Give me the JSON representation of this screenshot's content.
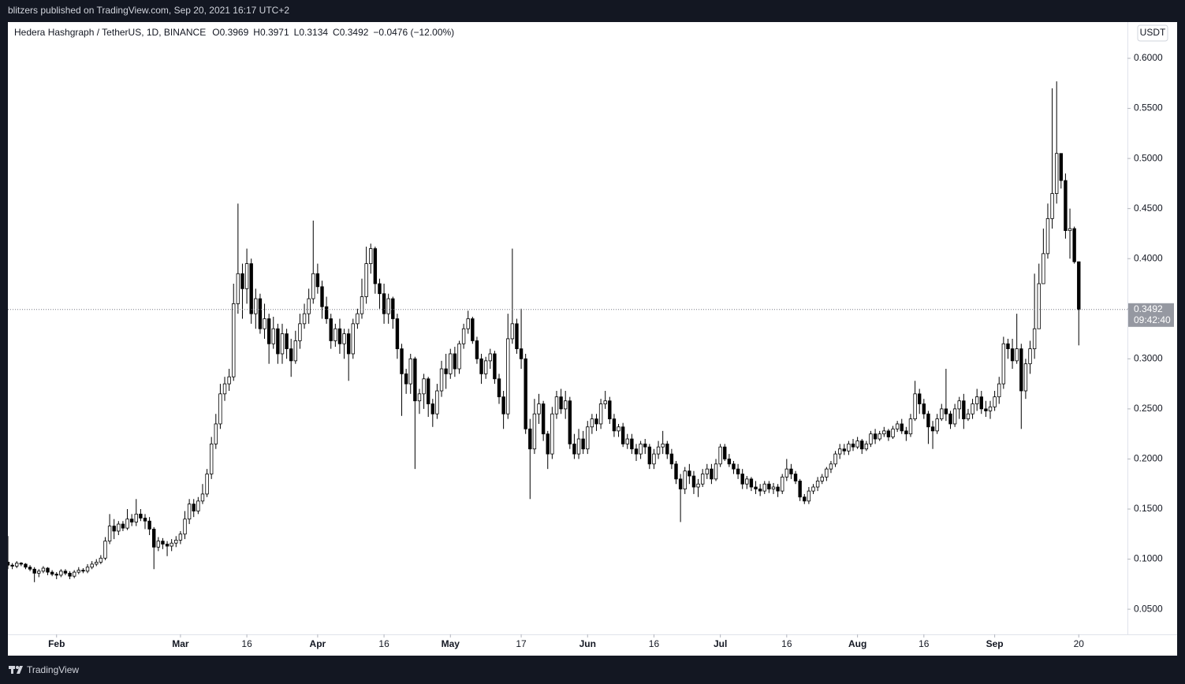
{
  "header": {
    "published": "blitzers published on TradingView.com, Sep 20, 2021 16:17 UTC+2"
  },
  "footer": {
    "brand": "TradingView"
  },
  "chart_data": {
    "type": "candlestick",
    "title": "Hedera Hashgraph / TetherUS, 1D, BINANCE",
    "legend_labels": [
      "O",
      "H",
      "L",
      "C"
    ],
    "change": "−0.0476 (−12.00%)",
    "currency": "USDT",
    "countdown": "09:42:40",
    "up_color": "#ffffff",
    "down_color": "#000000",
    "x": [
      "2021-01-21",
      "2021-01-22",
      "2021-01-23",
      "2021-01-24",
      "2021-01-25",
      "2021-01-26",
      "2021-01-27",
      "2021-01-28",
      "2021-01-29",
      "2021-01-30",
      "2021-01-31",
      "2021-02-01",
      "2021-02-02",
      "2021-02-03",
      "2021-02-04",
      "2021-02-05",
      "2021-02-06",
      "2021-02-07",
      "2021-02-08",
      "2021-02-09",
      "2021-02-10",
      "2021-02-11",
      "2021-02-12",
      "2021-02-13",
      "2021-02-14",
      "2021-02-15",
      "2021-02-16",
      "2021-02-17",
      "2021-02-18",
      "2021-02-19",
      "2021-02-20",
      "2021-02-21",
      "2021-02-22",
      "2021-02-23",
      "2021-02-24",
      "2021-02-25",
      "2021-02-26",
      "2021-02-27",
      "2021-02-28",
      "2021-03-01",
      "2021-03-02",
      "2021-03-03",
      "2021-03-04",
      "2021-03-05",
      "2021-03-06",
      "2021-03-07",
      "2021-03-08",
      "2021-03-09",
      "2021-03-10",
      "2021-03-11",
      "2021-03-12",
      "2021-03-13",
      "2021-03-14",
      "2021-03-15",
      "2021-03-16",
      "2021-03-17",
      "2021-03-18",
      "2021-03-19",
      "2021-03-20",
      "2021-03-21",
      "2021-03-22",
      "2021-03-23",
      "2021-03-24",
      "2021-03-25",
      "2021-03-26",
      "2021-03-27",
      "2021-03-28",
      "2021-03-29",
      "2021-03-30",
      "2021-03-31",
      "2021-04-01",
      "2021-04-02",
      "2021-04-03",
      "2021-04-04",
      "2021-04-05",
      "2021-04-06",
      "2021-04-07",
      "2021-04-08",
      "2021-04-09",
      "2021-04-10",
      "2021-04-11",
      "2021-04-12",
      "2021-04-13",
      "2021-04-14",
      "2021-04-15",
      "2021-04-16",
      "2021-04-17",
      "2021-04-18",
      "2021-04-19",
      "2021-04-20",
      "2021-04-21",
      "2021-04-22",
      "2021-04-23",
      "2021-04-24",
      "2021-04-25",
      "2021-04-26",
      "2021-04-27",
      "2021-04-28",
      "2021-04-29",
      "2021-04-30",
      "2021-05-01",
      "2021-05-02",
      "2021-05-03",
      "2021-05-04",
      "2021-05-05",
      "2021-05-06",
      "2021-05-07",
      "2021-05-08",
      "2021-05-09",
      "2021-05-10",
      "2021-05-11",
      "2021-05-12",
      "2021-05-13",
      "2021-05-14",
      "2021-05-15",
      "2021-05-16",
      "2021-05-17",
      "2021-05-18",
      "2021-05-19",
      "2021-05-20",
      "2021-05-21",
      "2021-05-22",
      "2021-05-23",
      "2021-05-24",
      "2021-05-25",
      "2021-05-26",
      "2021-05-27",
      "2021-05-28",
      "2021-05-29",
      "2021-05-30",
      "2021-05-31",
      "2021-06-01",
      "2021-06-02",
      "2021-06-03",
      "2021-06-04",
      "2021-06-05",
      "2021-06-06",
      "2021-06-07",
      "2021-06-08",
      "2021-06-09",
      "2021-06-10",
      "2021-06-11",
      "2021-06-12",
      "2021-06-13",
      "2021-06-14",
      "2021-06-15",
      "2021-06-16",
      "2021-06-17",
      "2021-06-18",
      "2021-06-19",
      "2021-06-20",
      "2021-06-21",
      "2021-06-22",
      "2021-06-23",
      "2021-06-24",
      "2021-06-25",
      "2021-06-26",
      "2021-06-27",
      "2021-06-28",
      "2021-06-29",
      "2021-06-30",
      "2021-07-01",
      "2021-07-02",
      "2021-07-03",
      "2021-07-04",
      "2021-07-05",
      "2021-07-06",
      "2021-07-07",
      "2021-07-08",
      "2021-07-09",
      "2021-07-10",
      "2021-07-11",
      "2021-07-12",
      "2021-07-13",
      "2021-07-14",
      "2021-07-15",
      "2021-07-16",
      "2021-07-17",
      "2021-07-18",
      "2021-07-19",
      "2021-07-20",
      "2021-07-21",
      "2021-07-22",
      "2021-07-23",
      "2021-07-24",
      "2021-07-25",
      "2021-07-26",
      "2021-07-27",
      "2021-07-28",
      "2021-07-29",
      "2021-07-30",
      "2021-07-31",
      "2021-08-01",
      "2021-08-02",
      "2021-08-03",
      "2021-08-04",
      "2021-08-05",
      "2021-08-06",
      "2021-08-07",
      "2021-08-08",
      "2021-08-09",
      "2021-08-10",
      "2021-08-11",
      "2021-08-12",
      "2021-08-13",
      "2021-08-14",
      "2021-08-15",
      "2021-08-16",
      "2021-08-17",
      "2021-08-18",
      "2021-08-19",
      "2021-08-20",
      "2021-08-21",
      "2021-08-22",
      "2021-08-23",
      "2021-08-24",
      "2021-08-25",
      "2021-08-26",
      "2021-08-27",
      "2021-08-28",
      "2021-08-29",
      "2021-08-30",
      "2021-08-31",
      "2021-09-01",
      "2021-09-02",
      "2021-09-03",
      "2021-09-04",
      "2021-09-05",
      "2021-09-06",
      "2021-09-07",
      "2021-09-08",
      "2021-09-09",
      "2021-09-10",
      "2021-09-11",
      "2021-09-12",
      "2021-09-13",
      "2021-09-14",
      "2021-09-15",
      "2021-09-16",
      "2021-09-17",
      "2021-09-18",
      "2021-09-19",
      "2021-09-20"
    ],
    "open": [
      0.097,
      0.094,
      0.093,
      0.096,
      0.095,
      0.092,
      0.09,
      0.086,
      0.088,
      0.091,
      0.087,
      0.085,
      0.084,
      0.088,
      0.086,
      0.083,
      0.087,
      0.089,
      0.088,
      0.092,
      0.095,
      0.097,
      0.101,
      0.118,
      0.133,
      0.128,
      0.135,
      0.131,
      0.14,
      0.137,
      0.145,
      0.141,
      0.138,
      0.13,
      0.112,
      0.118,
      0.115,
      0.113,
      0.116,
      0.119,
      0.125,
      0.14,
      0.155,
      0.148,
      0.158,
      0.165,
      0.185,
      0.215,
      0.235,
      0.265,
      0.275,
      0.282,
      0.355,
      0.385,
      0.37,
      0.395,
      0.345,
      0.36,
      0.33,
      0.34,
      0.315,
      0.33,
      0.305,
      0.325,
      0.31,
      0.298,
      0.318,
      0.335,
      0.345,
      0.36,
      0.385,
      0.372,
      0.352,
      0.34,
      0.318,
      0.33,
      0.315,
      0.325,
      0.305,
      0.335,
      0.345,
      0.362,
      0.395,
      0.41,
      0.375,
      0.365,
      0.345,
      0.36,
      0.34,
      0.31,
      0.285,
      0.275,
      0.3,
      0.258,
      0.265,
      0.28,
      0.255,
      0.245,
      0.268,
      0.29,
      0.285,
      0.305,
      0.29,
      0.315,
      0.33,
      0.34,
      0.318,
      0.3,
      0.285,
      0.298,
      0.305,
      0.28,
      0.262,
      0.245,
      0.32,
      0.335,
      0.31,
      0.3,
      0.23,
      0.21,
      0.245,
      0.255,
      0.225,
      0.205,
      0.245,
      0.262,
      0.25,
      0.258,
      0.215,
      0.205,
      0.22,
      0.21,
      0.232,
      0.24,
      0.235,
      0.255,
      0.258,
      0.24,
      0.228,
      0.232,
      0.215,
      0.22,
      0.21,
      0.205,
      0.215,
      0.212,
      0.195,
      0.205,
      0.212,
      0.215,
      0.205,
      0.195,
      0.18,
      0.17,
      0.188,
      0.183,
      0.172,
      0.175,
      0.185,
      0.19,
      0.18,
      0.195,
      0.212,
      0.2,
      0.195,
      0.19,
      0.185,
      0.175,
      0.18,
      0.172,
      0.17,
      0.168,
      0.175,
      0.17,
      0.172,
      0.168,
      0.182,
      0.19,
      0.185,
      0.178,
      0.162,
      0.158,
      0.168,
      0.172,
      0.178,
      0.182,
      0.19,
      0.195,
      0.205,
      0.21,
      0.208,
      0.215,
      0.212,
      0.218,
      0.21,
      0.215,
      0.225,
      0.22,
      0.225,
      0.228,
      0.222,
      0.23,
      0.235,
      0.228,
      0.225,
      0.24,
      0.265,
      0.255,
      0.245,
      0.232,
      0.228,
      0.24,
      0.25,
      0.245,
      0.235,
      0.25,
      0.258,
      0.24,
      0.245,
      0.255,
      0.262,
      0.25,
      0.248,
      0.252,
      0.262,
      0.275,
      0.315,
      0.31,
      0.298,
      0.31,
      0.268,
      0.295,
      0.31,
      0.33,
      0.375,
      0.405,
      0.44,
      0.465,
      0.505,
      0.478,
      0.428,
      0.43,
      0.3969
    ],
    "high": [
      0.123,
      0.096,
      0.098,
      0.097,
      0.096,
      0.094,
      0.092,
      0.09,
      0.093,
      0.092,
      0.089,
      0.087,
      0.09,
      0.09,
      0.088,
      0.089,
      0.092,
      0.091,
      0.095,
      0.098,
      0.1,
      0.104,
      0.122,
      0.145,
      0.14,
      0.138,
      0.138,
      0.15,
      0.145,
      0.16,
      0.15,
      0.145,
      0.142,
      0.132,
      0.122,
      0.121,
      0.118,
      0.12,
      0.123,
      0.128,
      0.148,
      0.16,
      0.16,
      0.162,
      0.175,
      0.19,
      0.222,
      0.245,
      0.275,
      0.282,
      0.29,
      0.375,
      0.455,
      0.395,
      0.41,
      0.4,
      0.37,
      0.365,
      0.355,
      0.345,
      0.342,
      0.335,
      0.335,
      0.33,
      0.32,
      0.328,
      0.345,
      0.355,
      0.37,
      0.438,
      0.395,
      0.378,
      0.362,
      0.345,
      0.335,
      0.34,
      0.33,
      0.33,
      0.34,
      0.35,
      0.38,
      0.412,
      0.415,
      0.412,
      0.38,
      0.375,
      0.365,
      0.362,
      0.345,
      0.315,
      0.29,
      0.305,
      0.302,
      0.27,
      0.285,
      0.282,
      0.26,
      0.275,
      0.298,
      0.305,
      0.31,
      0.312,
      0.318,
      0.335,
      0.348,
      0.342,
      0.322,
      0.305,
      0.302,
      0.31,
      0.308,
      0.285,
      0.268,
      0.345,
      0.41,
      0.34,
      0.35,
      0.305,
      0.24,
      0.26,
      0.265,
      0.258,
      0.228,
      0.252,
      0.268,
      0.27,
      0.268,
      0.262,
      0.225,
      0.23,
      0.228,
      0.238,
      0.245,
      0.245,
      0.26,
      0.268,
      0.262,
      0.245,
      0.235,
      0.236,
      0.225,
      0.225,
      0.215,
      0.218,
      0.22,
      0.215,
      0.21,
      0.218,
      0.228,
      0.218,
      0.21,
      0.198,
      0.185,
      0.192,
      0.195,
      0.188,
      0.18,
      0.19,
      0.195,
      0.195,
      0.2,
      0.215,
      0.215,
      0.205,
      0.198,
      0.195,
      0.19,
      0.183,
      0.182,
      0.178,
      0.175,
      0.178,
      0.178,
      0.176,
      0.175,
      0.185,
      0.2,
      0.195,
      0.188,
      0.18,
      0.165,
      0.172,
      0.175,
      0.182,
      0.185,
      0.192,
      0.198,
      0.208,
      0.215,
      0.215,
      0.218,
      0.22,
      0.222,
      0.22,
      0.218,
      0.228,
      0.23,
      0.228,
      0.232,
      0.23,
      0.233,
      0.238,
      0.24,
      0.232,
      0.245,
      0.278,
      0.27,
      0.26,
      0.248,
      0.238,
      0.245,
      0.255,
      0.29,
      0.248,
      0.255,
      0.262,
      0.265,
      0.25,
      0.26,
      0.27,
      0.268,
      0.258,
      0.258,
      0.268,
      0.282,
      0.322,
      0.32,
      0.32,
      0.345,
      0.315,
      0.3,
      0.318,
      0.385,
      0.395,
      0.43,
      0.455,
      0.57,
      0.577,
      0.505,
      0.485,
      0.45,
      0.432,
      0.3971
    ],
    "low": [
      0.09,
      0.09,
      0.091,
      0.093,
      0.09,
      0.088,
      0.077,
      0.082,
      0.086,
      0.084,
      0.083,
      0.08,
      0.082,
      0.084,
      0.08,
      0.081,
      0.085,
      0.086,
      0.086,
      0.09,
      0.093,
      0.095,
      0.099,
      0.115,
      0.12,
      0.124,
      0.128,
      0.129,
      0.133,
      0.133,
      0.138,
      0.13,
      0.124,
      0.09,
      0.108,
      0.11,
      0.103,
      0.108,
      0.112,
      0.115,
      0.12,
      0.135,
      0.142,
      0.145,
      0.155,
      0.162,
      0.18,
      0.21,
      0.23,
      0.258,
      0.268,
      0.278,
      0.345,
      0.34,
      0.355,
      0.335,
      0.33,
      0.325,
      0.32,
      0.295,
      0.31,
      0.295,
      0.295,
      0.3,
      0.282,
      0.295,
      0.31,
      0.33,
      0.335,
      0.355,
      0.365,
      0.34,
      0.335,
      0.31,
      0.312,
      0.305,
      0.3,
      0.278,
      0.3,
      0.33,
      0.34,
      0.355,
      0.385,
      0.365,
      0.35,
      0.335,
      0.335,
      0.33,
      0.3,
      0.243,
      0.265,
      0.265,
      0.19,
      0.245,
      0.25,
      0.242,
      0.232,
      0.24,
      0.262,
      0.27,
      0.28,
      0.282,
      0.285,
      0.31,
      0.325,
      0.315,
      0.295,
      0.275,
      0.28,
      0.29,
      0.275,
      0.255,
      0.23,
      0.24,
      0.315,
      0.305,
      0.29,
      0.225,
      0.16,
      0.205,
      0.235,
      0.218,
      0.19,
      0.2,
      0.24,
      0.245,
      0.24,
      0.21,
      0.2,
      0.2,
      0.205,
      0.205,
      0.225,
      0.228,
      0.23,
      0.25,
      0.235,
      0.222,
      0.222,
      0.212,
      0.21,
      0.205,
      0.198,
      0.2,
      0.205,
      0.19,
      0.19,
      0.2,
      0.205,
      0.2,
      0.19,
      0.175,
      0.137,
      0.165,
      0.175,
      0.165,
      0.162,
      0.172,
      0.18,
      0.175,
      0.178,
      0.192,
      0.198,
      0.192,
      0.185,
      0.18,
      0.17,
      0.17,
      0.168,
      0.165,
      0.163,
      0.165,
      0.166,
      0.165,
      0.162,
      0.165,
      0.178,
      0.18,
      0.175,
      0.158,
      0.155,
      0.155,
      0.165,
      0.168,
      0.175,
      0.178,
      0.186,
      0.192,
      0.2,
      0.204,
      0.204,
      0.208,
      0.21,
      0.205,
      0.208,
      0.212,
      0.215,
      0.218,
      0.222,
      0.218,
      0.22,
      0.227,
      0.225,
      0.218,
      0.222,
      0.238,
      0.245,
      0.24,
      0.215,
      0.21,
      0.225,
      0.238,
      0.238,
      0.23,
      0.232,
      0.24,
      0.23,
      0.238,
      0.24,
      0.248,
      0.245,
      0.242,
      0.24,
      0.248,
      0.255,
      0.27,
      0.3,
      0.29,
      0.295,
      0.23,
      0.26,
      0.285,
      0.3,
      0.33,
      0.375,
      0.4,
      0.43,
      0.455,
      0.47,
      0.42,
      0.4,
      0.395,
      0.3134
    ],
    "close": [
      0.094,
      0.093,
      0.096,
      0.095,
      0.092,
      0.09,
      0.086,
      0.088,
      0.091,
      0.087,
      0.085,
      0.084,
      0.088,
      0.086,
      0.083,
      0.087,
      0.089,
      0.088,
      0.092,
      0.095,
      0.097,
      0.101,
      0.118,
      0.133,
      0.128,
      0.135,
      0.131,
      0.14,
      0.137,
      0.145,
      0.141,
      0.138,
      0.13,
      0.112,
      0.118,
      0.115,
      0.113,
      0.116,
      0.119,
      0.125,
      0.14,
      0.155,
      0.148,
      0.158,
      0.165,
      0.185,
      0.215,
      0.235,
      0.265,
      0.275,
      0.282,
      0.355,
      0.385,
      0.37,
      0.395,
      0.345,
      0.36,
      0.33,
      0.34,
      0.315,
      0.33,
      0.305,
      0.325,
      0.31,
      0.298,
      0.318,
      0.335,
      0.345,
      0.36,
      0.385,
      0.372,
      0.352,
      0.34,
      0.318,
      0.33,
      0.315,
      0.325,
      0.305,
      0.335,
      0.345,
      0.362,
      0.395,
      0.41,
      0.375,
      0.365,
      0.345,
      0.36,
      0.34,
      0.31,
      0.285,
      0.275,
      0.3,
      0.258,
      0.265,
      0.28,
      0.255,
      0.245,
      0.268,
      0.29,
      0.285,
      0.305,
      0.29,
      0.315,
      0.33,
      0.34,
      0.318,
      0.3,
      0.285,
      0.298,
      0.305,
      0.28,
      0.262,
      0.245,
      0.32,
      0.335,
      0.31,
      0.3,
      0.23,
      0.21,
      0.245,
      0.255,
      0.225,
      0.205,
      0.245,
      0.262,
      0.25,
      0.258,
      0.215,
      0.205,
      0.22,
      0.21,
      0.232,
      0.24,
      0.235,
      0.255,
      0.258,
      0.24,
      0.228,
      0.232,
      0.215,
      0.22,
      0.21,
      0.205,
      0.215,
      0.212,
      0.195,
      0.205,
      0.212,
      0.215,
      0.205,
      0.195,
      0.18,
      0.17,
      0.188,
      0.183,
      0.172,
      0.175,
      0.185,
      0.19,
      0.18,
      0.195,
      0.212,
      0.2,
      0.195,
      0.19,
      0.185,
      0.175,
      0.18,
      0.172,
      0.17,
      0.168,
      0.175,
      0.17,
      0.172,
      0.168,
      0.182,
      0.19,
      0.185,
      0.178,
      0.162,
      0.158,
      0.168,
      0.172,
      0.178,
      0.182,
      0.19,
      0.195,
      0.205,
      0.21,
      0.208,
      0.215,
      0.212,
      0.218,
      0.21,
      0.215,
      0.225,
      0.22,
      0.225,
      0.228,
      0.222,
      0.23,
      0.235,
      0.228,
      0.225,
      0.24,
      0.265,
      0.255,
      0.245,
      0.232,
      0.228,
      0.24,
      0.25,
      0.245,
      0.235,
      0.25,
      0.258,
      0.24,
      0.245,
      0.255,
      0.262,
      0.25,
      0.248,
      0.252,
      0.262,
      0.275,
      0.315,
      0.31,
      0.298,
      0.31,
      0.268,
      0.295,
      0.31,
      0.33,
      0.375,
      0.405,
      0.44,
      0.465,
      0.505,
      0.478,
      0.428,
      0.43,
      0.3969,
      0.3492
    ],
    "ylim": [
      0.0249,
      0.6362
    ],
    "yticks": [
      {
        "value": 0.05,
        "label": "0.0500"
      },
      {
        "value": 0.1,
        "label": "0.1000"
      },
      {
        "value": 0.15,
        "label": "0.1500"
      },
      {
        "value": 0.2,
        "label": "0.2000"
      },
      {
        "value": 0.25,
        "label": "0.2500"
      },
      {
        "value": 0.3,
        "label": "0.3000"
      },
      {
        "value": 0.35,
        "label": "0.3500"
      },
      {
        "value": 0.4,
        "label": "0.4000"
      },
      {
        "value": 0.45,
        "label": "0.4500"
      },
      {
        "value": 0.5,
        "label": "0.5000"
      },
      {
        "value": 0.55,
        "label": "0.5500"
      },
      {
        "value": 0.6,
        "label": "0.6000"
      }
    ],
    "xlim": [
      "2021-01-21",
      "2021-10-01"
    ],
    "xticks": [
      {
        "value": "2021-02-01",
        "label": "Feb"
      },
      {
        "value": "2021-03-01",
        "label": "Mar"
      },
      {
        "value": "2021-03-16",
        "label": "16"
      },
      {
        "value": "2021-04-01",
        "label": "Apr"
      },
      {
        "value": "2021-04-16",
        "label": "16"
      },
      {
        "value": "2021-05-01",
        "label": "May"
      },
      {
        "value": "2021-05-17",
        "label": "17"
      },
      {
        "value": "2021-06-01",
        "label": "Jun"
      },
      {
        "value": "2021-06-16",
        "label": "16"
      },
      {
        "value": "2021-07-01",
        "label": "Jul"
      },
      {
        "value": "2021-07-16",
        "label": "16"
      },
      {
        "value": "2021-08-01",
        "label": "Aug"
      },
      {
        "value": "2021-08-16",
        "label": "16"
      },
      {
        "value": "2021-09-01",
        "label": "Sep"
      },
      {
        "value": "2021-09-20",
        "label": "20"
      }
    ]
  }
}
